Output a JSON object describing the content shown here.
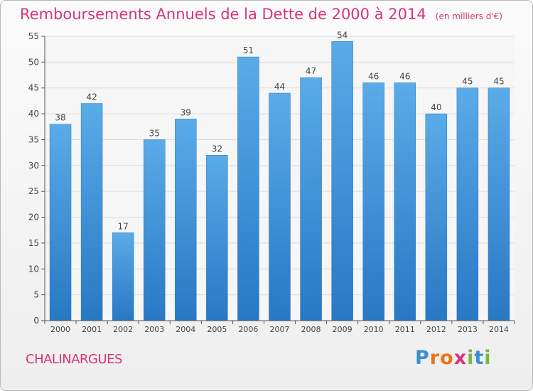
{
  "chart_data": {
    "type": "bar",
    "title": "Remboursements Annuels de la Dette de 2000 à 2014",
    "subtitle": "(en milliers d'€)",
    "categories": [
      "2000",
      "2001",
      "2002",
      "2003",
      "2004",
      "2005",
      "2006",
      "2007",
      "2008",
      "2009",
      "2010",
      "2011",
      "2012",
      "2013",
      "2014"
    ],
    "values": [
      38,
      42,
      17,
      35,
      39,
      32,
      51,
      44,
      47,
      54,
      46,
      46,
      40,
      45,
      45
    ],
    "ylim": [
      0,
      55
    ],
    "yticks": [
      0,
      5,
      10,
      15,
      20,
      25,
      30,
      35,
      40,
      45,
      50,
      55
    ],
    "grid": true,
    "bar_color": "#3a8fd6",
    "bar_color_light": "#5aabe8",
    "bar_color_dark": "#2878c4"
  },
  "place_name": "CHALINARGUES",
  "brand": {
    "name": "Proxiti",
    "letters": [
      "P",
      "r",
      "o",
      "x",
      "i",
      "t",
      "i"
    ],
    "letter_colors": [
      "#3b8fd4",
      "#e8751a",
      "#e8751a",
      "#d6337d",
      "#7ab648",
      "#3b8fd4",
      "#7ab648"
    ]
  },
  "colors": {
    "title": "#d6337d",
    "axis_text": "#444444",
    "grid": "#dddddd"
  }
}
